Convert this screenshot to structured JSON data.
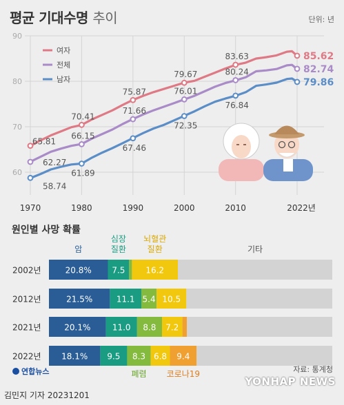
{
  "header": {
    "title_bold": "평균 기대수명",
    "title_light": "추이",
    "unit": "단위: 년"
  },
  "chart_data": [
    {
      "type": "line",
      "x": [
        1970,
        1980,
        1990,
        2000,
        2010,
        2022
      ],
      "xtick_labels": [
        "1970",
        "1980",
        "1990",
        "2000",
        "2010",
        "2022년"
      ],
      "ylim": [
        55,
        90
      ],
      "yticks": [
        60,
        70,
        80,
        90
      ],
      "grid": true,
      "legend": "top-left",
      "series": [
        {
          "name": "여자",
          "color": "#de7a85",
          "x": [
            1970,
            1972,
            1974,
            1976,
            1978,
            1980,
            1982,
            1984,
            1986,
            1988,
            1990,
            1992,
            1994,
            1996,
            1998,
            2000,
            2002,
            2004,
            2006,
            2008,
            2010,
            2012,
            2014,
            2016,
            2018,
            2020,
            2021,
            2022
          ],
          "values": [
            65.8,
            67.0,
            68.1,
            69.0,
            69.9,
            70.4,
            71.6,
            72.6,
            73.6,
            74.8,
            75.9,
            76.8,
            77.6,
            78.3,
            79.0,
            79.7,
            80.1,
            81.0,
            81.9,
            82.8,
            83.6,
            84.1,
            85.0,
            85.3,
            85.7,
            86.5,
            86.6,
            85.6
          ]
        },
        {
          "name": "전체",
          "color": "#a98bc7",
          "x": [
            1970,
            1972,
            1974,
            1976,
            1978,
            1980,
            1982,
            1984,
            1986,
            1988,
            1990,
            1992,
            1994,
            1996,
            1998,
            2000,
            2002,
            2004,
            2006,
            2008,
            2010,
            2012,
            2014,
            2016,
            2018,
            2020,
            2021,
            2022
          ],
          "values": [
            62.3,
            63.4,
            64.5,
            65.2,
            65.8,
            66.2,
            67.4,
            68.4,
            69.4,
            70.6,
            71.7,
            72.7,
            73.6,
            74.4,
            75.2,
            76.0,
            76.8,
            77.8,
            78.8,
            79.6,
            80.2,
            80.9,
            82.2,
            82.4,
            82.7,
            83.5,
            83.6,
            82.7
          ]
        },
        {
          "name": "남자",
          "color": "#5b8dc6",
          "x": [
            1970,
            1972,
            1974,
            1976,
            1978,
            1980,
            1982,
            1984,
            1986,
            1988,
            1990,
            1992,
            1994,
            1996,
            1998,
            2000,
            2002,
            2004,
            2006,
            2008,
            2010,
            2012,
            2014,
            2016,
            2018,
            2020,
            2021,
            2022
          ],
          "values": [
            58.7,
            59.6,
            60.6,
            61.2,
            61.7,
            61.9,
            63.2,
            64.3,
            65.3,
            66.4,
            67.5,
            68.6,
            69.6,
            70.4,
            71.4,
            72.4,
            73.4,
            74.5,
            75.5,
            76.2,
            76.8,
            77.6,
            79.0,
            79.3,
            79.7,
            80.5,
            80.6,
            79.9
          ]
        }
      ],
      "labels": [
        {
          "series": "여자",
          "x": 1970,
          "y": 65.81,
          "text": "65.81"
        },
        {
          "series": "여자",
          "x": 1980,
          "y": 70.41,
          "text": "70.41"
        },
        {
          "series": "여자",
          "x": 1990,
          "y": 75.87,
          "text": "75.87"
        },
        {
          "series": "여자",
          "x": 2000,
          "y": 79.67,
          "text": "79.67"
        },
        {
          "series": "여자",
          "x": 2010,
          "y": 83.63,
          "text": "83.63"
        },
        {
          "series": "여자",
          "x": 2022,
          "y": 85.62,
          "text": "85.62"
        },
        {
          "series": "전체",
          "x": 1970,
          "y": 62.27,
          "text": "62.27"
        },
        {
          "series": "전체",
          "x": 1980,
          "y": 66.15,
          "text": "66.15"
        },
        {
          "series": "전체",
          "x": 1990,
          "y": 71.66,
          "text": "71.66"
        },
        {
          "series": "전체",
          "x": 2000,
          "y": 76.01,
          "text": "76.01"
        },
        {
          "series": "전체",
          "x": 2010,
          "y": 80.24,
          "text": "80.24"
        },
        {
          "series": "전체",
          "x": 2022,
          "y": 82.74,
          "text": "82.74"
        },
        {
          "series": "남자",
          "x": 1970,
          "y": 58.74,
          "text": "58.74"
        },
        {
          "series": "남자",
          "x": 1980,
          "y": 61.89,
          "text": "61.89"
        },
        {
          "series": "남자",
          "x": 1990,
          "y": 67.46,
          "text": "67.46"
        },
        {
          "series": "남자",
          "x": 2000,
          "y": 72.35,
          "text": "72.35"
        },
        {
          "series": "남자",
          "x": 2010,
          "y": 76.84,
          "text": "76.84"
        },
        {
          "series": "남자",
          "x": 2022,
          "y": 79.86,
          "text": "79.86"
        }
      ]
    },
    {
      "type": "bar",
      "stacked": true,
      "orientation": "horizontal",
      "title": "원인별 사망 확률",
      "xlim": [
        0,
        100
      ],
      "categories": [
        "2002년",
        "2012년",
        "2021년",
        "2022년"
      ],
      "series": [
        {
          "name": "암",
          "color": "#2a5d96",
          "values": [
            20.8,
            21.5,
            20.1,
            18.1
          ],
          "labels": [
            "20.8%",
            "21.5%",
            "20.1%",
            "18.1%"
          ]
        },
        {
          "name": "심장 질환",
          "color": "#199c82",
          "values": [
            7.5,
            11.1,
            11.0,
            9.5
          ]
        },
        {
          "name": "폐렴",
          "color": "#84bb3e",
          "values": [
            1.0,
            5.4,
            8.8,
            8.3
          ]
        },
        {
          "name": "뇌혈관 질환",
          "color": "#f2c80f",
          "values": [
            16.2,
            10.5,
            7.2,
            6.8
          ]
        },
        {
          "name": "코로나19",
          "color": "#f0a030",
          "values": [
            0,
            0,
            1.6,
            9.4
          ]
        },
        {
          "name": "기타",
          "color": "#d3d3d3",
          "values": [
            54.5,
            51.5,
            51.3,
            47.9
          ]
        }
      ],
      "value_labels": [
        [
          "20.8%",
          "7.5",
          "",
          "16.2",
          "",
          ""
        ],
        [
          "21.5%",
          "11.1",
          "5.4",
          "10.5",
          "",
          ""
        ],
        [
          "20.1%",
          "11.0",
          "8.8",
          "7.2",
          "1.6",
          ""
        ],
        [
          "18.1%",
          "9.5",
          "8.3",
          "6.8",
          "9.4",
          ""
        ]
      ],
      "header_labels": {
        "cancer": "암",
        "heart": "심장\n질환",
        "cerebro": "뇌혈관\n질환",
        "other": "기타"
      },
      "footer_labels": {
        "pneumonia": "폐렴",
        "covid": "코로나19"
      },
      "label_colors": {
        "cancer": "#2a5d96",
        "heart": "#199c82",
        "cerebro": "#d9a800",
        "other": "#555555",
        "pneumonia": "#6aa52b",
        "covid": "#e07d20"
      }
    }
  ],
  "footer": {
    "logo": "연합뉴스",
    "source": "자료: 통계청",
    "author": "김민지 기자  20231201",
    "watermark": "YONHAP NEWS"
  }
}
